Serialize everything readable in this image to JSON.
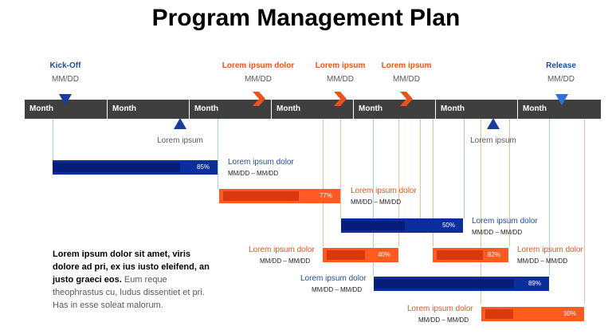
{
  "title": "Program Management Plan",
  "milestones_top": [
    {
      "label": "Kick-Off",
      "date": "MM/DD",
      "color": "#1f4e9a",
      "marker": "triangle-down"
    },
    {
      "label": "Lorem ipsum dolor",
      "date": "MM/DD",
      "color": "#e8541e",
      "marker": "chevron-right"
    },
    {
      "label": "Lorem ipsum",
      "date": "MM/DD",
      "color": "#e8541e",
      "marker": "chevron-right"
    },
    {
      "label": "Lorem ipsum",
      "date": "MM/DD",
      "color": "#e8541e",
      "marker": "chevron-right"
    },
    {
      "label": "Release",
      "date": "MM/DD",
      "color": "#1f4e9a",
      "marker": "triangle-down"
    }
  ],
  "milestones_bottom": [
    {
      "label": "Lorem ipsum",
      "marker": "triangle-up"
    },
    {
      "label": "Lorem ipsum",
      "marker": "triangle-up"
    }
  ],
  "months": [
    "Month",
    "Month",
    "Month",
    "Month",
    "Month",
    "Month",
    "Month"
  ],
  "tasks": [
    {
      "name": "Lorem ipsum dolor",
      "dates": "MM/DD – MM/DD",
      "pct": "85%",
      "color": "blue"
    },
    {
      "name": "Lorem ipsum dolor",
      "dates": "MM/DD – MM/DD",
      "pct": "77%",
      "color": "orange"
    },
    {
      "name": "Lorem ipsum dolor",
      "dates": "MM/DD – MM/DD",
      "pct": "50%",
      "color": "blue"
    },
    {
      "name": "Lorem ipsum dolor",
      "dates": "MM/DD – MM/DD",
      "pct": "40%",
      "color": "orange"
    },
    {
      "name": "Lorem ipsum dolor",
      "dates": "MM/DD – MM/DD",
      "pct": "82%",
      "color": "orange"
    },
    {
      "name": "Lorem ipsum dolor",
      "dates": "MM/DD – MM/DD",
      "pct": "89%",
      "color": "blue"
    },
    {
      "name": "Lorem ipsum dolor",
      "dates": "MM/DD – MM/DD",
      "pct": "30%",
      "color": "orange"
    }
  ],
  "note": {
    "bold": "Lorem ipsum dolor sit amet, viris dolore ad pri, ex ius iusto eleifend, an justo graeci eos.",
    "regular": " Eum reque theophrastus cu, ludus dissentiet et pri. Has in esse soleat malorum."
  },
  "colors": {
    "blue": "#0a2f9c",
    "orange": "#ff5a1f",
    "timeline": "#3f3f3f"
  }
}
